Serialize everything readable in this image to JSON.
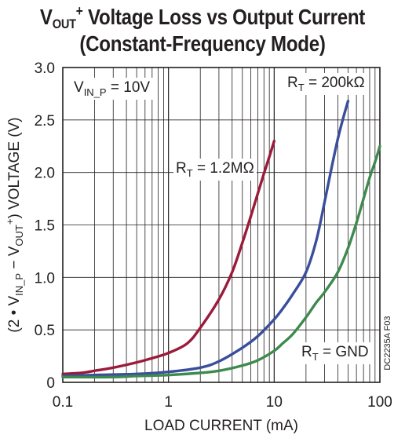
{
  "title": {
    "line1": {
      "a": "V",
      "sub": "OUT",
      "sup": "+",
      "rest": " Voltage Loss vs Output Current"
    },
    "line2": "(Constant-Frequency Mode)"
  },
  "chart_data": {
    "type": "line",
    "x_scale": "log",
    "xlim": [
      0.1,
      100
    ],
    "ylim": [
      0,
      3.0
    ],
    "xlabel": "LOAD CURRENT (mA)",
    "ylabel_parts": {
      "p1": "(2 • V",
      "s1": "IN_P",
      "p2": " − V",
      "s2": "OUT",
      "sup2": "+",
      "p3": ") VOLTAGE (V)"
    },
    "x_ticks": [
      {
        "value": 0.1,
        "label": "0.1"
      },
      {
        "value": 1,
        "label": "1"
      },
      {
        "value": 10,
        "label": "10"
      },
      {
        "value": 100,
        "label": "100"
      }
    ],
    "y_ticks": [
      {
        "value": 0,
        "label": "0"
      },
      {
        "value": 0.5,
        "label": "0.5"
      },
      {
        "value": 1.0,
        "label": "1.0"
      },
      {
        "value": 1.5,
        "label": "1.5"
      },
      {
        "value": 2.0,
        "label": "2.0"
      },
      {
        "value": 2.5,
        "label": "2.5"
      },
      {
        "value": 3.0,
        "label": "3.0"
      }
    ],
    "grid": true,
    "annotation": {
      "a": "V",
      "sub": "IN_P",
      "rest": " = 10V"
    },
    "series_labels": {
      "a": {
        "pre": "R",
        "sub": "T",
        "post": " = 1.2MΩ"
      },
      "b": {
        "pre": "R",
        "sub": "T",
        "post": " = 200kΩ"
      },
      "c": {
        "pre": "R",
        "sub": "T",
        "post": " = GND"
      }
    },
    "series": [
      {
        "color": "#9b1b3b",
        "x": [
          0.1,
          0.15,
          0.2,
          0.3,
          0.5,
          0.7,
          1,
          1.5,
          2,
          3,
          4,
          5,
          6,
          7,
          8,
          9,
          10
        ],
        "y": [
          0.08,
          0.09,
          0.11,
          0.14,
          0.19,
          0.23,
          0.28,
          0.37,
          0.52,
          0.79,
          1.05,
          1.33,
          1.58,
          1.8,
          1.99,
          2.15,
          2.3
        ]
      },
      {
        "color": "#3a4f9c",
        "x": [
          0.1,
          0.2,
          0.5,
          1,
          2,
          3,
          5,
          7,
          10,
          12,
          15,
          20,
          25,
          30,
          35,
          40,
          45,
          50
        ],
        "y": [
          0.06,
          0.07,
          0.08,
          0.1,
          0.14,
          0.2,
          0.33,
          0.44,
          0.6,
          0.7,
          0.84,
          1.05,
          1.35,
          1.72,
          2.05,
          2.32,
          2.52,
          2.68
        ]
      },
      {
        "color": "#3e8a4e",
        "x": [
          0.1,
          0.3,
          0.5,
          1,
          2,
          3,
          5,
          7,
          10,
          12,
          15,
          20,
          25,
          30,
          40,
          50,
          60,
          70,
          80,
          90,
          100
        ],
        "y": [
          0.05,
          0.05,
          0.06,
          0.07,
          0.09,
          0.11,
          0.16,
          0.21,
          0.3,
          0.37,
          0.46,
          0.62,
          0.76,
          0.86,
          1.05,
          1.28,
          1.52,
          1.75,
          1.95,
          2.1,
          2.25
        ]
      }
    ],
    "side_note": "DC2235A F03"
  }
}
